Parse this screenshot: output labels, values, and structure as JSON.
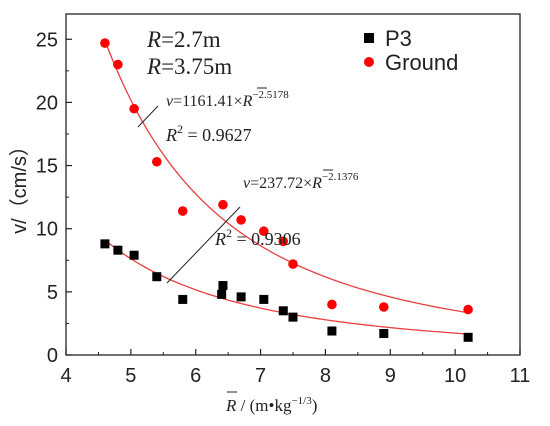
{
  "chart_data": {
    "type": "scatter",
    "xlim": [
      4,
      11
    ],
    "ylim": [
      0,
      27
    ],
    "x_ticks": [
      "4",
      "5",
      "6",
      "7",
      "8",
      "9",
      "10",
      "11"
    ],
    "y_ticks": [
      "0",
      "5",
      "10",
      "15",
      "20",
      "25"
    ],
    "xlabel": {
      "main": "R",
      "tail": " / (m•kg",
      "exp": "−1/3",
      "close": ")"
    },
    "ylabel": "v/（cm/s）",
    "legend_position": "top-right",
    "annotations": {
      "r_p3": {
        "sym": "R",
        "val": "=2.7m"
      },
      "r_ground": {
        "sym": "R",
        "val": "=3.75m"
      },
      "eq_ground": {
        "lhs": "v",
        "coef": "=1161.41×",
        "base": "R",
        "exp": "−2.5178"
      },
      "r2_ground": {
        "lhs": "R",
        "exp": "2",
        "val": " = 0.9627"
      },
      "eq_p3": {
        "lhs": "v",
        "coef": "=237.72×",
        "base": "R",
        "exp": "−2.1376"
      },
      "r2_p3": {
        "lhs": "R",
        "exp": "2",
        "val": " = 0.9306"
      }
    },
    "series": [
      {
        "name": "P3",
        "marker": "square",
        "color": "#000000",
        "points": [
          [
            4.6,
            8.8
          ],
          [
            4.8,
            8.3
          ],
          [
            5.05,
            7.9
          ],
          [
            5.4,
            6.2
          ],
          [
            5.8,
            4.4
          ],
          [
            6.4,
            4.8
          ],
          [
            6.42,
            5.5
          ],
          [
            6.7,
            4.6
          ],
          [
            7.05,
            4.4
          ],
          [
            7.35,
            3.5
          ],
          [
            7.5,
            3.0
          ],
          [
            8.1,
            1.9
          ],
          [
            8.9,
            1.7
          ],
          [
            10.2,
            1.4
          ]
        ],
        "fit": {
          "a": 237.72,
          "b": -2.1376
        }
      },
      {
        "name": "Ground",
        "marker": "circle",
        "color": "#ff0000",
        "points": [
          [
            4.6,
            24.7
          ],
          [
            4.8,
            23.0
          ],
          [
            5.05,
            19.5
          ],
          [
            5.4,
            15.3
          ],
          [
            5.8,
            11.4
          ],
          [
            6.42,
            11.9
          ],
          [
            6.7,
            10.7
          ],
          [
            7.05,
            9.8
          ],
          [
            7.35,
            9.0
          ],
          [
            7.5,
            7.2
          ],
          [
            8.1,
            4.0
          ],
          [
            8.9,
            3.8
          ],
          [
            10.2,
            3.6
          ]
        ],
        "fit": {
          "a": 1161.41,
          "b": -2.5178
        }
      }
    ],
    "fit_color": "#e84040"
  }
}
